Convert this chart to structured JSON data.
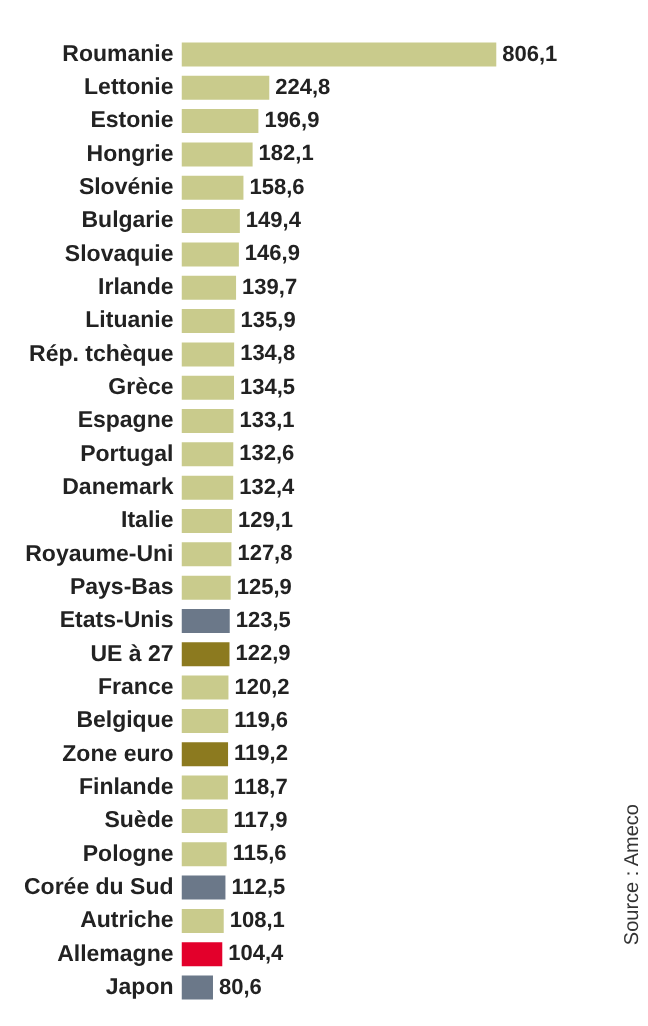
{
  "chart_data": {
    "type": "bar",
    "orientation": "horizontal",
    "categories": [
      "Roumanie",
      "Lettonie",
      "Estonie",
      "Hongrie",
      "Slovénie",
      "Bulgarie",
      "Slovaquie",
      "Irlande",
      "Lituanie",
      "Rép. tchèque",
      "Grèce",
      "Espagne",
      "Portugal",
      "Danemark",
      "Italie",
      "Royaume-Uni",
      "Pays-Bas",
      "Etats-Unis",
      "UE à 27",
      "France",
      "Belgique",
      "Zone euro",
      "Finlande",
      "Suède",
      "Pologne",
      "Corée du Sud",
      "Autriche",
      "Allemagne",
      "Japon"
    ],
    "values": [
      806.1,
      224.8,
      196.9,
      182.1,
      158.6,
      149.4,
      146.9,
      139.7,
      135.9,
      134.8,
      134.5,
      133.1,
      132.6,
      132.4,
      129.1,
      127.8,
      125.9,
      123.5,
      122.9,
      120.2,
      119.6,
      119.2,
      118.7,
      117.9,
      115.6,
      112.5,
      108.1,
      104.4,
      80.6
    ],
    "value_labels": [
      "806,1",
      "224,8",
      "196,9",
      "182,1",
      "158,6",
      "149,4",
      "146,9",
      "139,7",
      "135,9",
      "134,8",
      "134,5",
      "133,1",
      "132,6",
      "132,4",
      "129,1",
      "127,8",
      "125,9",
      "123,5",
      "122,9",
      "120,2",
      "119,6",
      "119,2",
      "118,7",
      "117,9",
      "115,6",
      "112,5",
      "108,1",
      "104,4",
      "80,6"
    ],
    "colors": [
      "#c9cb8c",
      "#c9cb8c",
      "#c9cb8c",
      "#c9cb8c",
      "#c9cb8c",
      "#c9cb8c",
      "#c9cb8c",
      "#c9cb8c",
      "#c9cb8c",
      "#c9cb8c",
      "#c9cb8c",
      "#c9cb8c",
      "#c9cb8c",
      "#c9cb8c",
      "#c9cb8c",
      "#c9cb8c",
      "#c9cb8c",
      "#6b7889",
      "#8c7a1f",
      "#c9cb8c",
      "#c9cb8c",
      "#8c7a1f",
      "#c9cb8c",
      "#c9cb8c",
      "#c9cb8c",
      "#6b7889",
      "#c9cb8c",
      "#e3002b",
      "#6b7889"
    ],
    "tick_labels": "y",
    "grid": false,
    "legend": false,
    "annotations": [
      "Source : Ameco"
    ]
  }
}
